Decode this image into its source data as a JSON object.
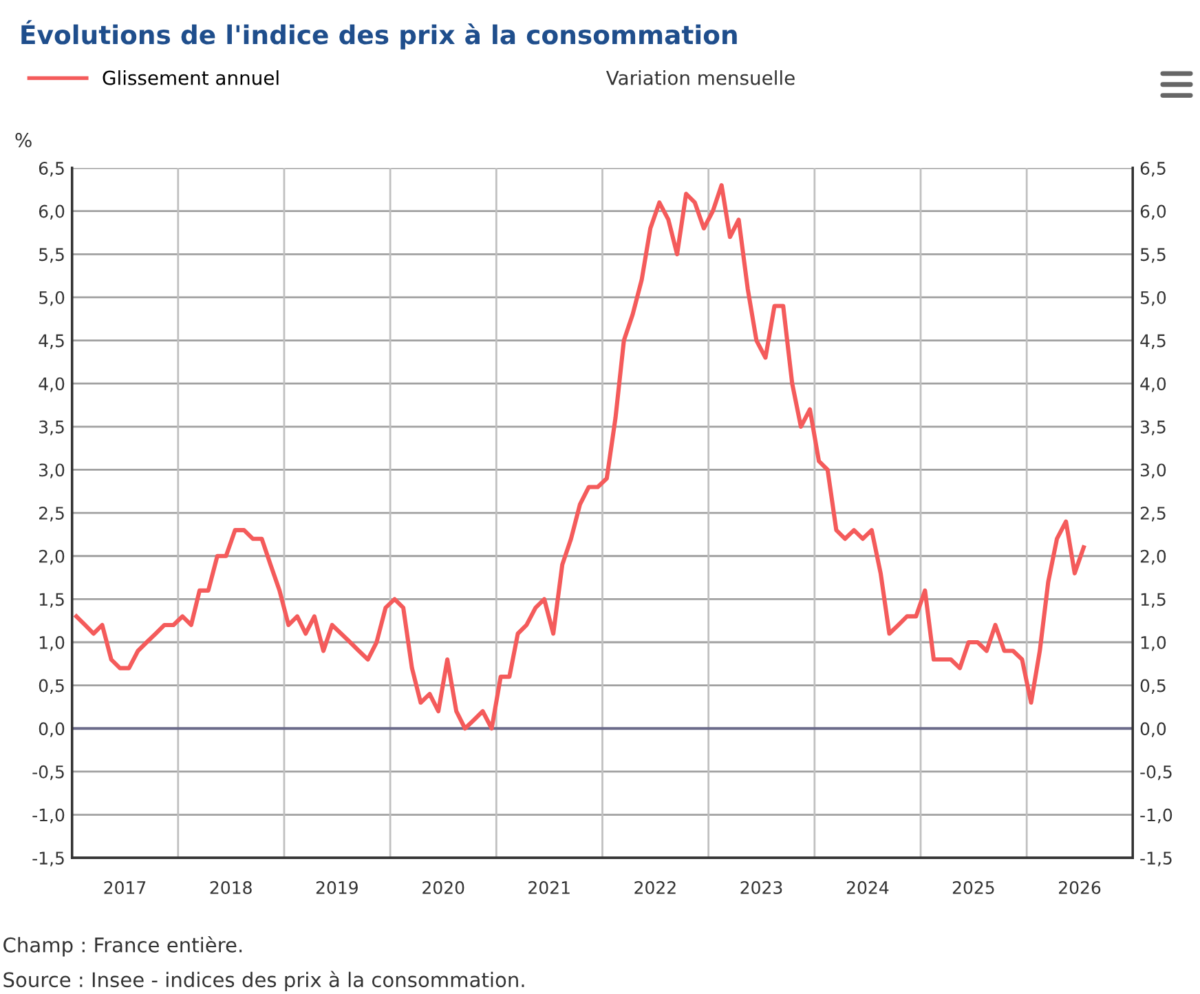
{
  "chart_data": {
    "type": "line",
    "title": "Évolutions de l'indice des prix à la consommation",
    "ylabel": "%",
    "x": [
      "2017-01-16",
      "2017-02-15",
      "2017-03-16",
      "2017-04-15",
      "2017-05-16",
      "2017-06-15",
      "2017-07-16",
      "2017-08-16",
      "2017-09-15",
      "2017-10-16",
      "2017-11-15",
      "2017-12-16",
      "2018-01-16",
      "2018-02-15",
      "2018-03-16",
      "2018-04-15",
      "2018-05-16",
      "2018-06-15",
      "2018-07-16",
      "2018-08-16",
      "2018-09-15",
      "2018-10-16",
      "2018-11-15",
      "2018-12-16",
      "2019-01-16",
      "2019-02-15",
      "2019-03-16",
      "2019-04-15",
      "2019-05-16",
      "2019-06-15",
      "2019-07-16",
      "2019-08-16",
      "2019-09-15",
      "2019-10-16",
      "2019-11-15",
      "2019-12-16",
      "2020-01-16",
      "2020-02-15",
      "2020-03-16",
      "2020-04-15",
      "2020-05-16",
      "2020-06-15",
      "2020-07-16",
      "2020-08-16",
      "2020-09-15",
      "2020-10-16",
      "2020-11-15",
      "2020-12-16",
      "2021-01-16",
      "2021-02-15",
      "2021-03-16",
      "2021-04-15",
      "2021-05-16",
      "2021-06-15",
      "2021-07-16",
      "2021-08-16",
      "2021-09-15",
      "2021-10-16",
      "2021-11-15",
      "2021-12-16",
      "2022-01-16",
      "2022-02-15",
      "2022-03-16",
      "2022-04-15",
      "2022-05-16",
      "2022-06-15",
      "2022-07-16",
      "2022-08-16",
      "2022-09-15",
      "2022-10-16",
      "2022-11-15",
      "2022-12-16",
      "2023-01-16",
      "2023-02-15",
      "2023-03-16",
      "2023-04-15",
      "2023-05-16",
      "2023-06-15",
      "2023-07-16",
      "2023-08-16",
      "2023-09-15",
      "2023-10-16",
      "2023-11-15",
      "2023-12-16",
      "2024-01-16",
      "2024-02-15",
      "2024-03-16",
      "2024-04-15",
      "2024-05-16",
      "2024-06-15",
      "2024-07-16",
      "2024-08-16",
      "2024-09-15",
      "2024-10-16",
      "2024-11-15",
      "2024-12-16",
      "2025-01-16",
      "2025-02-15",
      "2025-03-16",
      "2025-04-15",
      "2025-05-16",
      "2025-06-15",
      "2025-07-16",
      "2025-08-16",
      "2025-09-15",
      "2025-10-16",
      "2025-11-15",
      "2025-12-16",
      "2026-01-16",
      "2026-02-15",
      "2026-03-16",
      "2026-04-15",
      "2026-05-16",
      "2026-06-15",
      "2026-07-16"
    ],
    "series": [
      {
        "name": "Glissement annuel",
        "color": "#f45b5b",
        "values": [
          1.3,
          1.2,
          1.1,
          1.2,
          0.8,
          0.7,
          0.7,
          0.9,
          1.0,
          1.1,
          1.2,
          1.2,
          1.3,
          1.2,
          1.6,
          1.6,
          2.0,
          2.0,
          2.3,
          2.3,
          2.2,
          2.2,
          1.9,
          1.6,
          1.2,
          1.3,
          1.1,
          1.3,
          0.9,
          1.2,
          1.1,
          1.0,
          0.9,
          0.8,
          1.0,
          1.4,
          1.5,
          1.4,
          0.7,
          0.3,
          0.4,
          0.2,
          0.8,
          0.2,
          0.0,
          0.1,
          0.2,
          0.0,
          0.6,
          0.6,
          1.1,
          1.2,
          1.4,
          1.5,
          1.1,
          1.9,
          2.2,
          2.6,
          2.8,
          2.8,
          2.9,
          3.6,
          4.5,
          4.8,
          5.2,
          5.8,
          6.1,
          5.9,
          5.5,
          6.2,
          6.1,
          5.8,
          6.0,
          6.3,
          5.7,
          5.9,
          5.1,
          4.5,
          4.3,
          4.9,
          4.9,
          4.0,
          3.5,
          3.7,
          3.1,
          3.0,
          2.3,
          2.2,
          2.3,
          2.2,
          2.3,
          1.8,
          1.1,
          1.2,
          1.3,
          1.3,
          1.6,
          0.8,
          0.8,
          0.8,
          0.7,
          1.0,
          1.0,
          0.9,
          1.2,
          0.9,
          0.9,
          0.8,
          0.3,
          0.9,
          1.7,
          2.2,
          2.4,
          1.8,
          2.1
        ]
      }
    ],
    "xlim": [
      "2017-01-01",
      "2027-01-01"
    ],
    "xticks": [
      {
        "value": "2017-01-01",
        "label": null
      },
      {
        "value": "2017-07-02",
        "label": "2017"
      },
      {
        "value": "2018-01-01",
        "label": null
      },
      {
        "value": "2018-07-02",
        "label": "2018"
      },
      {
        "value": "2019-01-01",
        "label": null
      },
      {
        "value": "2019-07-02",
        "label": "2019"
      },
      {
        "value": "2020-01-01",
        "label": null
      },
      {
        "value": "2020-07-02",
        "label": "2020"
      },
      {
        "value": "2021-01-01",
        "label": null
      },
      {
        "value": "2021-07-02",
        "label": "2021"
      },
      {
        "value": "2022-01-01",
        "label": null
      },
      {
        "value": "2022-07-02",
        "label": "2022"
      },
      {
        "value": "2023-01-01",
        "label": null
      },
      {
        "value": "2023-07-02",
        "label": "2023"
      },
      {
        "value": "2024-01-01",
        "label": null
      },
      {
        "value": "2024-07-02",
        "label": "2024"
      },
      {
        "value": "2025-01-01",
        "label": null
      },
      {
        "value": "2025-07-02",
        "label": "2025"
      },
      {
        "value": "2026-01-01",
        "label": null
      },
      {
        "value": "2026-07-02",
        "label": "2026"
      },
      {
        "value": "2027-01-01",
        "label": null
      }
    ],
    "ylim": [
      -1.5,
      6.5
    ],
    "yticks": [
      {
        "value": -1.5,
        "label": "-1,5"
      },
      {
        "value": -1.0,
        "label": "-1,0"
      },
      {
        "value": -0.5,
        "label": "-0,5"
      },
      {
        "value": 0,
        "label": "0,0"
      },
      {
        "value": 0.5,
        "label": "0,5"
      },
      {
        "value": 1.0,
        "label": "1,0"
      },
      {
        "value": 1.5,
        "label": "1,5"
      },
      {
        "value": 2.0,
        "label": "2,0"
      },
      {
        "value": 2.5,
        "label": "2,5"
      },
      {
        "value": 3.0,
        "label": "3,0"
      },
      {
        "value": 3.5,
        "label": "3,5"
      },
      {
        "value": 4.0,
        "label": "4,0"
      },
      {
        "value": 4.5,
        "label": "4,5"
      },
      {
        "value": 5.0,
        "label": "5,0"
      },
      {
        "value": 5.5,
        "label": "5,5"
      },
      {
        "value": 6.0,
        "label": "6,0"
      },
      {
        "value": 6.5,
        "label": "6,5"
      }
    ],
    "y2lim": [
      -1.5,
      6.5
    ],
    "y2ticks": [
      {
        "value": -1.5,
        "label": "-1,5"
      },
      {
        "value": -1.0,
        "label": "-1,0"
      },
      {
        "value": -0.5,
        "label": "-0,5"
      },
      {
        "value": 0,
        "label": "0,0"
      },
      {
        "value": 0.5,
        "label": "0,5"
      },
      {
        "value": 1.0,
        "label": "1,0"
      },
      {
        "value": 1.5,
        "label": "1,5"
      },
      {
        "value": 2.0,
        "label": "2,0"
      },
      {
        "value": 2.5,
        "label": "2,5"
      },
      {
        "value": 3.0,
        "label": "3,0"
      },
      {
        "value": 3.5,
        "label": "3,5"
      },
      {
        "value": 4.0,
        "label": "4,0"
      },
      {
        "value": 4.5,
        "label": "4,5"
      },
      {
        "value": 5.0,
        "label": "5,0"
      },
      {
        "value": 5.5,
        "label": "5,5"
      },
      {
        "value": 6.0,
        "label": "6,0"
      },
      {
        "value": 6.5,
        "label": "6,5"
      }
    ],
    "ref_lines": [
      {
        "axis": "y",
        "value": 0,
        "color": "#6b6b8a"
      }
    ],
    "grid": true,
    "legend": "top left",
    "marker": "none",
    "line_style": "solid",
    "annotations": [
      "Variation mensuelle",
      "Champ : France entière.",
      "Source : Insee - indices des prix à la consommation."
    ]
  }
}
